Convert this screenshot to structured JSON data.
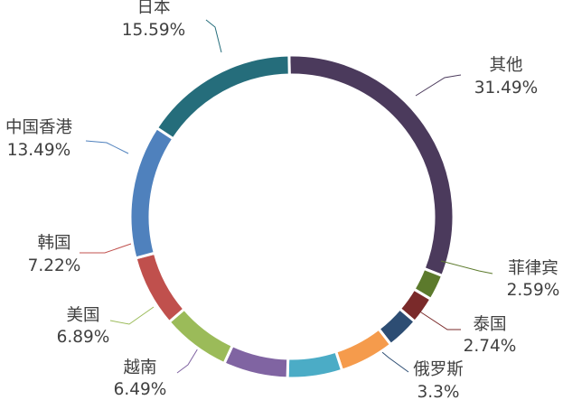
{
  "chart_data": {
    "type": "pie",
    "variant": "donut",
    "title": "",
    "legend": "none",
    "slices": [
      {
        "name": "其他",
        "value": 31.49,
        "label": "31.49%",
        "color": "#4b3a5c"
      },
      {
        "name": "菲律宾",
        "value": 2.59,
        "label": "2.59%",
        "color": "#5c7a2c"
      },
      {
        "name": "泰国",
        "value": 2.74,
        "label": "2.74%",
        "color": "#7a2a2a"
      },
      {
        "name": "俄罗斯",
        "value": 3.3,
        "label": "3.3%",
        "color": "#2d4d73"
      },
      {
        "name": "",
        "value": 5.5,
        "label": "",
        "color": "#f59b4c"
      },
      {
        "name": "",
        "value": 5.5,
        "label": "",
        "color": "#4bacc6"
      },
      {
        "name": "越南",
        "value": 6.49,
        "label": "6.49%",
        "color": "#8064a2"
      },
      {
        "name": "美国",
        "value": 6.89,
        "label": "6.89%",
        "color": "#9bbb59"
      },
      {
        "name": "韩国",
        "value": 7.22,
        "label": "7.22%",
        "color": "#c0504d"
      },
      {
        "name": "中国香港",
        "value": 13.49,
        "label": "13.49%",
        "color": "#4f81bd"
      },
      {
        "name": "日本",
        "value": 15.59,
        "label": "15.59%",
        "color": "#256d7b"
      }
    ]
  }
}
